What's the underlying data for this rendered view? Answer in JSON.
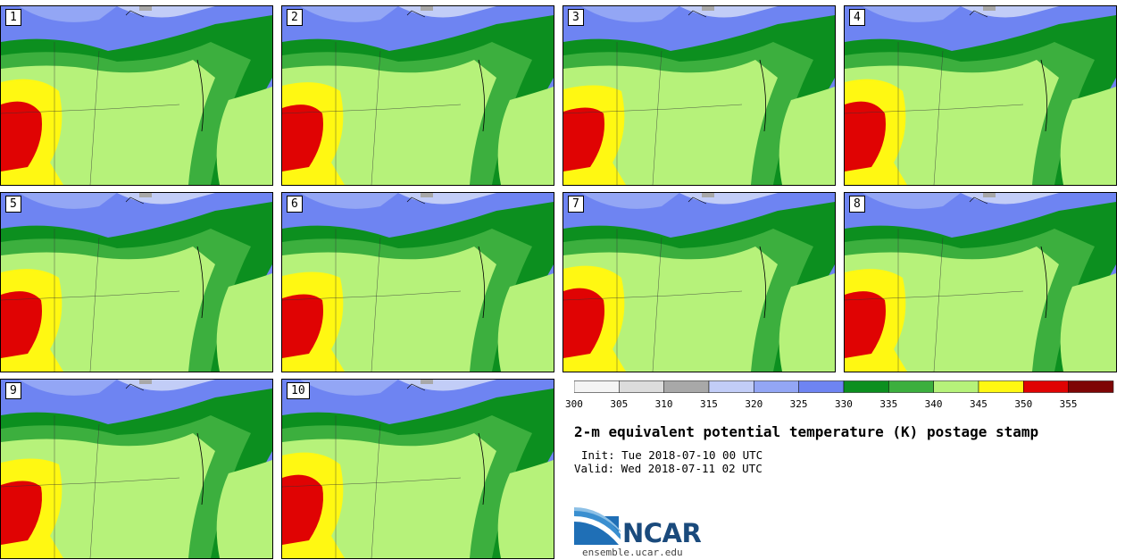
{
  "panels": [
    {
      "label": "1"
    },
    {
      "label": "2"
    },
    {
      "label": "3"
    },
    {
      "label": "4"
    },
    {
      "label": "5"
    },
    {
      "label": "6"
    },
    {
      "label": "7"
    },
    {
      "label": "8"
    },
    {
      "label": "9"
    },
    {
      "label": "10"
    }
  ],
  "colorbar": {
    "ticks": [
      "300",
      "305",
      "310",
      "315",
      "320",
      "325",
      "330",
      "335",
      "340",
      "345",
      "350",
      "355"
    ],
    "colors": [
      "#f4f4f4",
      "#dcdcdc",
      "#a8a8a8",
      "#c2cdf7",
      "#93a6f5",
      "#6e84f2",
      "#0c8f1f",
      "#3caf3e",
      "#b6f27a",
      "#fff812",
      "#e00303",
      "#7e0505"
    ]
  },
  "title": "2-m equivalent potential temperature (K) postage stamp",
  "init": "Init: Tue 2018-07-10 00 UTC",
  "valid": "Valid: Wed 2018-07-11 02 UTC",
  "logo": {
    "name": "NCAR",
    "url": "ensemble.ucar.edu"
  }
}
